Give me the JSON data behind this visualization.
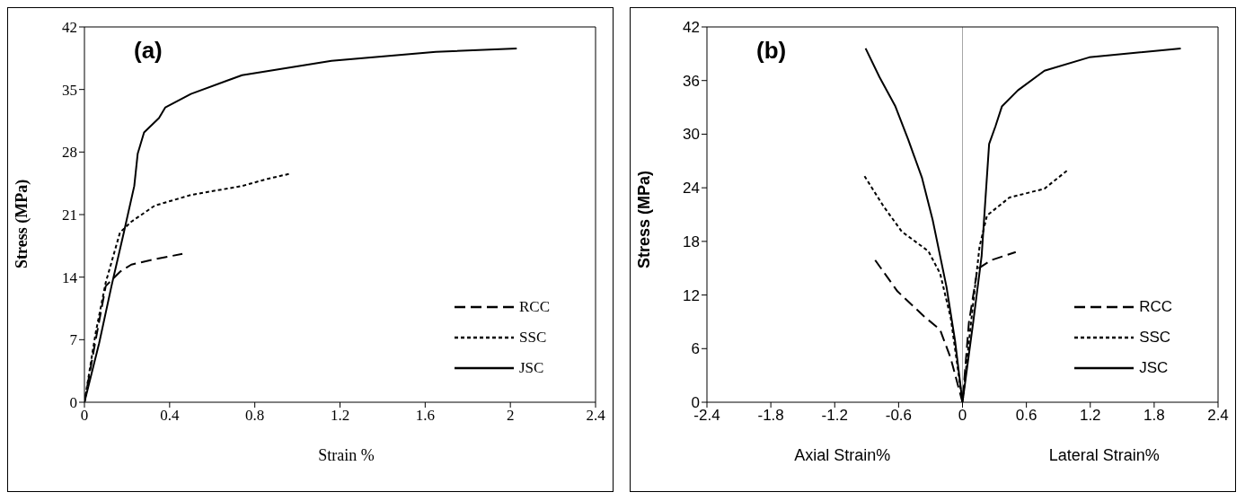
{
  "chart_data": [
    {
      "type": "line",
      "title": "(a)",
      "xlabel": "Strain %",
      "ylabel": "Stress (MPa)",
      "xlim": [
        0,
        2.4
      ],
      "xticks": [
        0,
        0.4,
        0.8,
        1.2,
        1.6,
        2,
        2.4
      ],
      "ylim": [
        0,
        42
      ],
      "yticks": [
        0,
        7,
        14,
        21,
        28,
        35,
        42
      ],
      "grid": false,
      "legend": "bottom right",
      "marker": "none",
      "series": [
        {
          "name": "RCC",
          "color": "#000000",
          "line_style": "dashed",
          "x": [
            0,
            0.053,
            0.1,
            0.167,
            0.22,
            0.33,
            0.46
          ],
          "values": [
            0,
            7,
            13,
            14.6,
            15.4,
            16,
            16.6
          ]
        },
        {
          "name": "SSC",
          "color": "#000000",
          "line_style": "dotted",
          "x": [
            0,
            0.053,
            0.1,
            0.167,
            0.22,
            0.33,
            0.5,
            0.74,
            0.86,
            0.97
          ],
          "values": [
            0,
            7.8,
            13.4,
            19,
            20.2,
            22,
            23.2,
            24.2,
            25,
            25.6
          ]
        },
        {
          "name": "JSC",
          "color": "#000000",
          "line_style": "solid",
          "x": [
            0,
            0.069,
            0.127,
            0.185,
            0.234,
            0.25,
            0.28,
            0.35,
            0.38,
            0.5,
            0.74,
            1.16,
            1.65,
            2.03
          ],
          "values": [
            0,
            6.6,
            13,
            19,
            24.2,
            27.8,
            30.2,
            31.8,
            33,
            34.5,
            36.6,
            38.2,
            39.2,
            39.6
          ]
        }
      ]
    },
    {
      "type": "line",
      "title": "(b)",
      "ylabel": "Stress (MPa)",
      "annotations": [
        "Axial Strain%",
        "Lateral Strain%"
      ],
      "xlim": [
        -2.4,
        2.4
      ],
      "xticks": [
        -2.4,
        -1.8,
        -1.2,
        -0.6,
        0,
        0.6,
        1.2,
        1.8,
        2.4
      ],
      "ylim": [
        0,
        42
      ],
      "yticks": [
        0,
        6,
        12,
        18,
        24,
        30,
        36,
        42
      ],
      "grid": false,
      "legend": "bottom right",
      "marker": "none",
      "ref_lines": [
        {
          "axis": "x",
          "value": 0,
          "color": "#a6a6a6"
        }
      ],
      "series": [
        {
          "name": "RCC",
          "color": "#000000",
          "line_style": "dashed",
          "x": [
            -0.82,
            -0.61,
            -0.36,
            -0.21,
            -0.11,
            0,
            0.06,
            0.14,
            0.27,
            0.5
          ],
          "values": [
            15.9,
            12.4,
            9.6,
            8.1,
            4.9,
            0,
            8.9,
            14.9,
            15.9,
            16.8
          ]
        },
        {
          "name": "SSC",
          "color": "#000000",
          "line_style": "dotted",
          "x": [
            -0.92,
            -0.74,
            -0.57,
            -0.32,
            -0.21,
            -0.11,
            0,
            0.08,
            0.16,
            0.23,
            0.44,
            0.77,
            0.98
          ],
          "values": [
            25.3,
            21.9,
            19.1,
            16.9,
            14.4,
            9.4,
            0,
            8.9,
            17.4,
            20.9,
            22.9,
            23.9,
            25.9
          ]
        },
        {
          "name": "JSC",
          "color": "#000000",
          "line_style": "solid",
          "x": [
            -0.91,
            -0.78,
            -0.63,
            -0.51,
            -0.38,
            -0.28,
            -0.15,
            -0.07,
            0,
            0.1,
            0.18,
            0.25,
            0.31,
            0.37,
            0.52,
            0.77,
            1.19,
            2.05
          ],
          "values": [
            39.6,
            36.4,
            33.1,
            29.4,
            25.1,
            20.4,
            12.9,
            6.9,
            0,
            8.9,
            16.4,
            28.9,
            30.9,
            33.1,
            34.9,
            37.1,
            38.6,
            39.6
          ]
        }
      ]
    }
  ]
}
